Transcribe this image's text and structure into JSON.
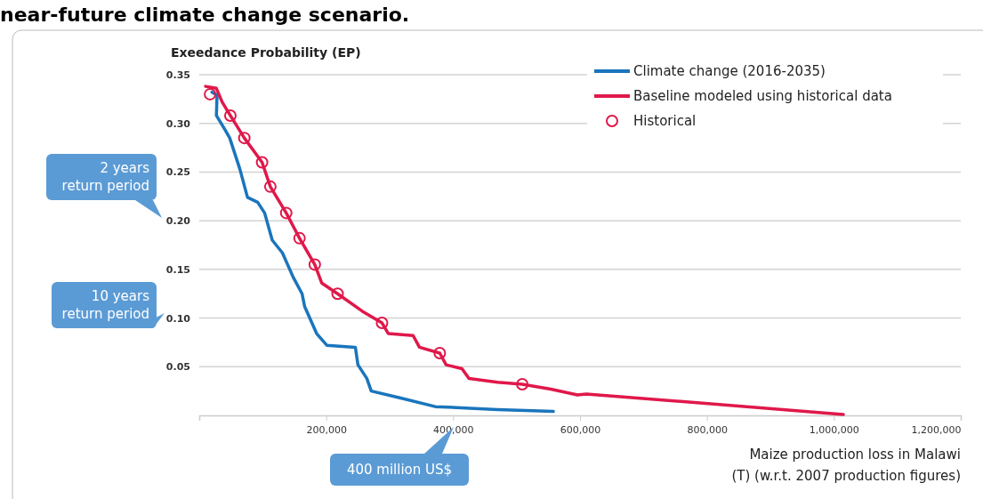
{
  "chart_data": {
    "type": "line",
    "title": "near-future climate change scenario.",
    "ylabel": "Exeedance Probability (EP)",
    "xlabel": "Maize production loss in Malawi\n(T) (w.r.t. 2007 production figures)",
    "xlim": [
      0,
      1200000
    ],
    "xticks": [
      {
        "value": 200000,
        "label": "200,000"
      },
      {
        "value": 400000,
        "label": "400,000"
      },
      {
        "value": 600000,
        "label": "600,000"
      },
      {
        "value": 800000,
        "label": "800,000"
      },
      {
        "value": 1000000,
        "label": "1,000,000"
      },
      {
        "value": 1200000,
        "label": "1,200,000"
      }
    ],
    "ylim": [
      0,
      0.35
    ],
    "yticks": [
      0.05,
      {
        "value": 0.1,
        "label": "0.10"
      },
      0.15,
      {
        "value": 0.2,
        "label": "0.20"
      },
      0.25,
      {
        "value": 0.3,
        "label": "0.30"
      },
      0.35
    ],
    "grid": "y",
    "legend": "top right",
    "line_style": "solid",
    "annotations": [
      "2 years\nreturn period",
      "10 years\nreturn period",
      "400 million US$"
    ],
    "series": [
      {
        "name": "Climate change (2016-2035)",
        "color": "#1a75bc",
        "x": [
          20000,
          28000,
          27000,
          41000,
          48000,
          64000,
          76000,
          92000,
          103000,
          115000,
          131000,
          148000,
          162000,
          166000,
          185000,
          201000,
          246000,
          250000,
          264000,
          271000,
          316000,
          372000,
          470000,
          558000
        ],
        "values": [
          0.332,
          0.329,
          0.308,
          0.293,
          0.285,
          0.253,
          0.224,
          0.219,
          0.208,
          0.18,
          0.167,
          0.142,
          0.125,
          0.112,
          0.084,
          0.072,
          0.07,
          0.052,
          0.038,
          0.025,
          0.018,
          0.009,
          0.006,
          0.004
        ]
      },
      {
        "name": "Baseline modeled using historical data",
        "color": "#e0184a",
        "x": [
          10000,
          27000,
          36000,
          49000,
          71000,
          99000,
          112000,
          137000,
          158000,
          182000,
          193000,
          218000,
          257000,
          288000,
          298000,
          337000,
          347000,
          379000,
          389000,
          414000,
          425000,
          470000,
          509000,
          554000,
          596000,
          610000,
          1015000
        ],
        "values": [
          0.338,
          0.336,
          0.322,
          0.308,
          0.285,
          0.26,
          0.235,
          0.208,
          0.182,
          0.155,
          0.136,
          0.125,
          0.107,
          0.095,
          0.084,
          0.082,
          0.07,
          0.064,
          0.052,
          0.048,
          0.038,
          0.034,
          0.032,
          0.027,
          0.021,
          0.022,
          0.001
        ]
      },
      {
        "name": "Historical",
        "type": "scatter",
        "color": "#e0184a",
        "marker": "circle",
        "x": [
          17000,
          49000,
          71000,
          99000,
          112000,
          137000,
          158000,
          182000,
          218000,
          288000,
          379000,
          509000
        ],
        "values": [
          0.33,
          0.308,
          0.285,
          0.26,
          0.235,
          0.208,
          0.182,
          0.155,
          0.125,
          0.095,
          0.064,
          0.032
        ]
      }
    ]
  }
}
